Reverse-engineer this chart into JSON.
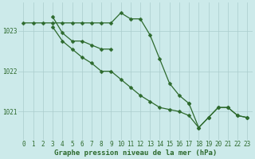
{
  "title": "Graphe pression niveau de la mer (hPa)",
  "bg_color": "#cceaea",
  "grid_color": "#aacccc",
  "line_color": "#2d6a2d",
  "xlim": [
    -0.5,
    23.5
  ],
  "ylim": [
    1020.3,
    1023.7
  ],
  "yticks": [
    1021,
    1022,
    1023
  ],
  "xticks": [
    0,
    1,
    2,
    3,
    4,
    5,
    6,
    7,
    8,
    9,
    10,
    11,
    12,
    13,
    14,
    15,
    16,
    17,
    18,
    19,
    20,
    21,
    22,
    23
  ],
  "line1_x": [
    0,
    1,
    2,
    3,
    4,
    5,
    6,
    7,
    8,
    9,
    10,
    11,
    12,
    13,
    14,
    15,
    16,
    17
  ],
  "line1_y": [
    1023.2,
    1023.2,
    1023.2,
    1023.2,
    1023.2,
    1023.2,
    1023.2,
    1023.2,
    1023.2,
    1023.2,
    1023.45,
    1023.3,
    1023.3,
    1022.9,
    1022.3,
    1021.7,
    1021.4,
    1021.2
  ],
  "line2_x": [
    3,
    4,
    5,
    6,
    7,
    8,
    9
  ],
  "line2_y": [
    1023.35,
    1022.95,
    1022.75,
    1022.75,
    1022.65,
    1022.55,
    1022.55
  ],
  "line3_x": [
    3,
    4,
    5,
    6,
    7,
    8,
    9,
    10,
    11,
    12,
    13,
    14,
    15,
    16,
    17,
    18,
    19,
    20,
    21,
    22,
    23
  ],
  "line3_y": [
    1023.1,
    1022.75,
    1022.55,
    1022.35,
    1022.2,
    1022.0,
    1022.0,
    1021.8,
    1021.6,
    1021.4,
    1021.25,
    1021.1,
    1021.05,
    1021.0,
    1020.9,
    1020.6,
    1020.85,
    1021.1,
    1021.1,
    1020.9,
    1020.85
  ],
  "line4_x": [
    17,
    18,
    19,
    20,
    21,
    22,
    23
  ],
  "line4_y": [
    1021.2,
    1020.6,
    1020.85,
    1021.1,
    1021.1,
    1020.9,
    1020.85
  ],
  "tick_fontsize": 5.5,
  "xlabel_fontsize": 6.5
}
